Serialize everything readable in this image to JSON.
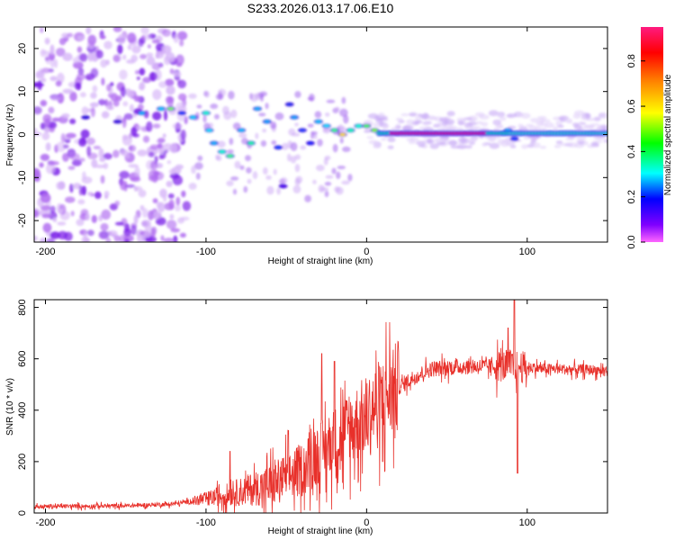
{
  "title": "S233.2026.013.17.06.E10",
  "chart_data": [
    {
      "type": "heatmap",
      "xlabel": "Height of straight line (km)",
      "ylabel": "Frequency (Hz)",
      "xlim": [
        -207,
        150
      ],
      "ylim": [
        -25,
        25
      ],
      "xticks": [
        -200,
        -100,
        0,
        100
      ],
      "yticks": [
        -20,
        -10,
        0,
        10,
        20
      ],
      "colorbar": {
        "label": "Normalized spectral amplitude",
        "range": [
          0,
          0.95
        ],
        "ticks": [
          0.0,
          0.2,
          0.4,
          0.6,
          0.8
        ]
      }
    },
    {
      "type": "line",
      "series_name": "SNR",
      "color": "#e8302a",
      "xlabel": "Height of straight line (km)",
      "ylabel": "SNR (10 * v/v)",
      "xlim": [
        -207,
        150
      ],
      "ylim": [
        0,
        830
      ],
      "xticks": [
        -200,
        -100,
        0,
        100
      ],
      "yticks": [
        0,
        200,
        400,
        600,
        800
      ],
      "trend": [
        [
          -207,
          25
        ],
        [
          -150,
          28
        ],
        [
          -120,
          35
        ],
        [
          -100,
          55
        ],
        [
          -80,
          80
        ],
        [
          -60,
          110
        ],
        [
          -40,
          170
        ],
        [
          -30,
          230
        ],
        [
          -20,
          280
        ],
        [
          -10,
          330
        ],
        [
          0,
          380
        ],
        [
          10,
          440
        ],
        [
          20,
          490
        ],
        [
          30,
          530
        ],
        [
          40,
          560
        ],
        [
          60,
          570
        ],
        [
          80,
          570
        ],
        [
          90,
          575
        ],
        [
          100,
          565
        ],
        [
          120,
          560
        ],
        [
          150,
          555
        ]
      ],
      "spikes": [
        [
          92,
          830
        ],
        [
          94,
          155
        ],
        [
          88,
          720
        ],
        [
          -28,
          620
        ],
        [
          -20,
          590
        ],
        [
          10,
          200
        ],
        [
          -85,
          240
        ]
      ]
    }
  ]
}
